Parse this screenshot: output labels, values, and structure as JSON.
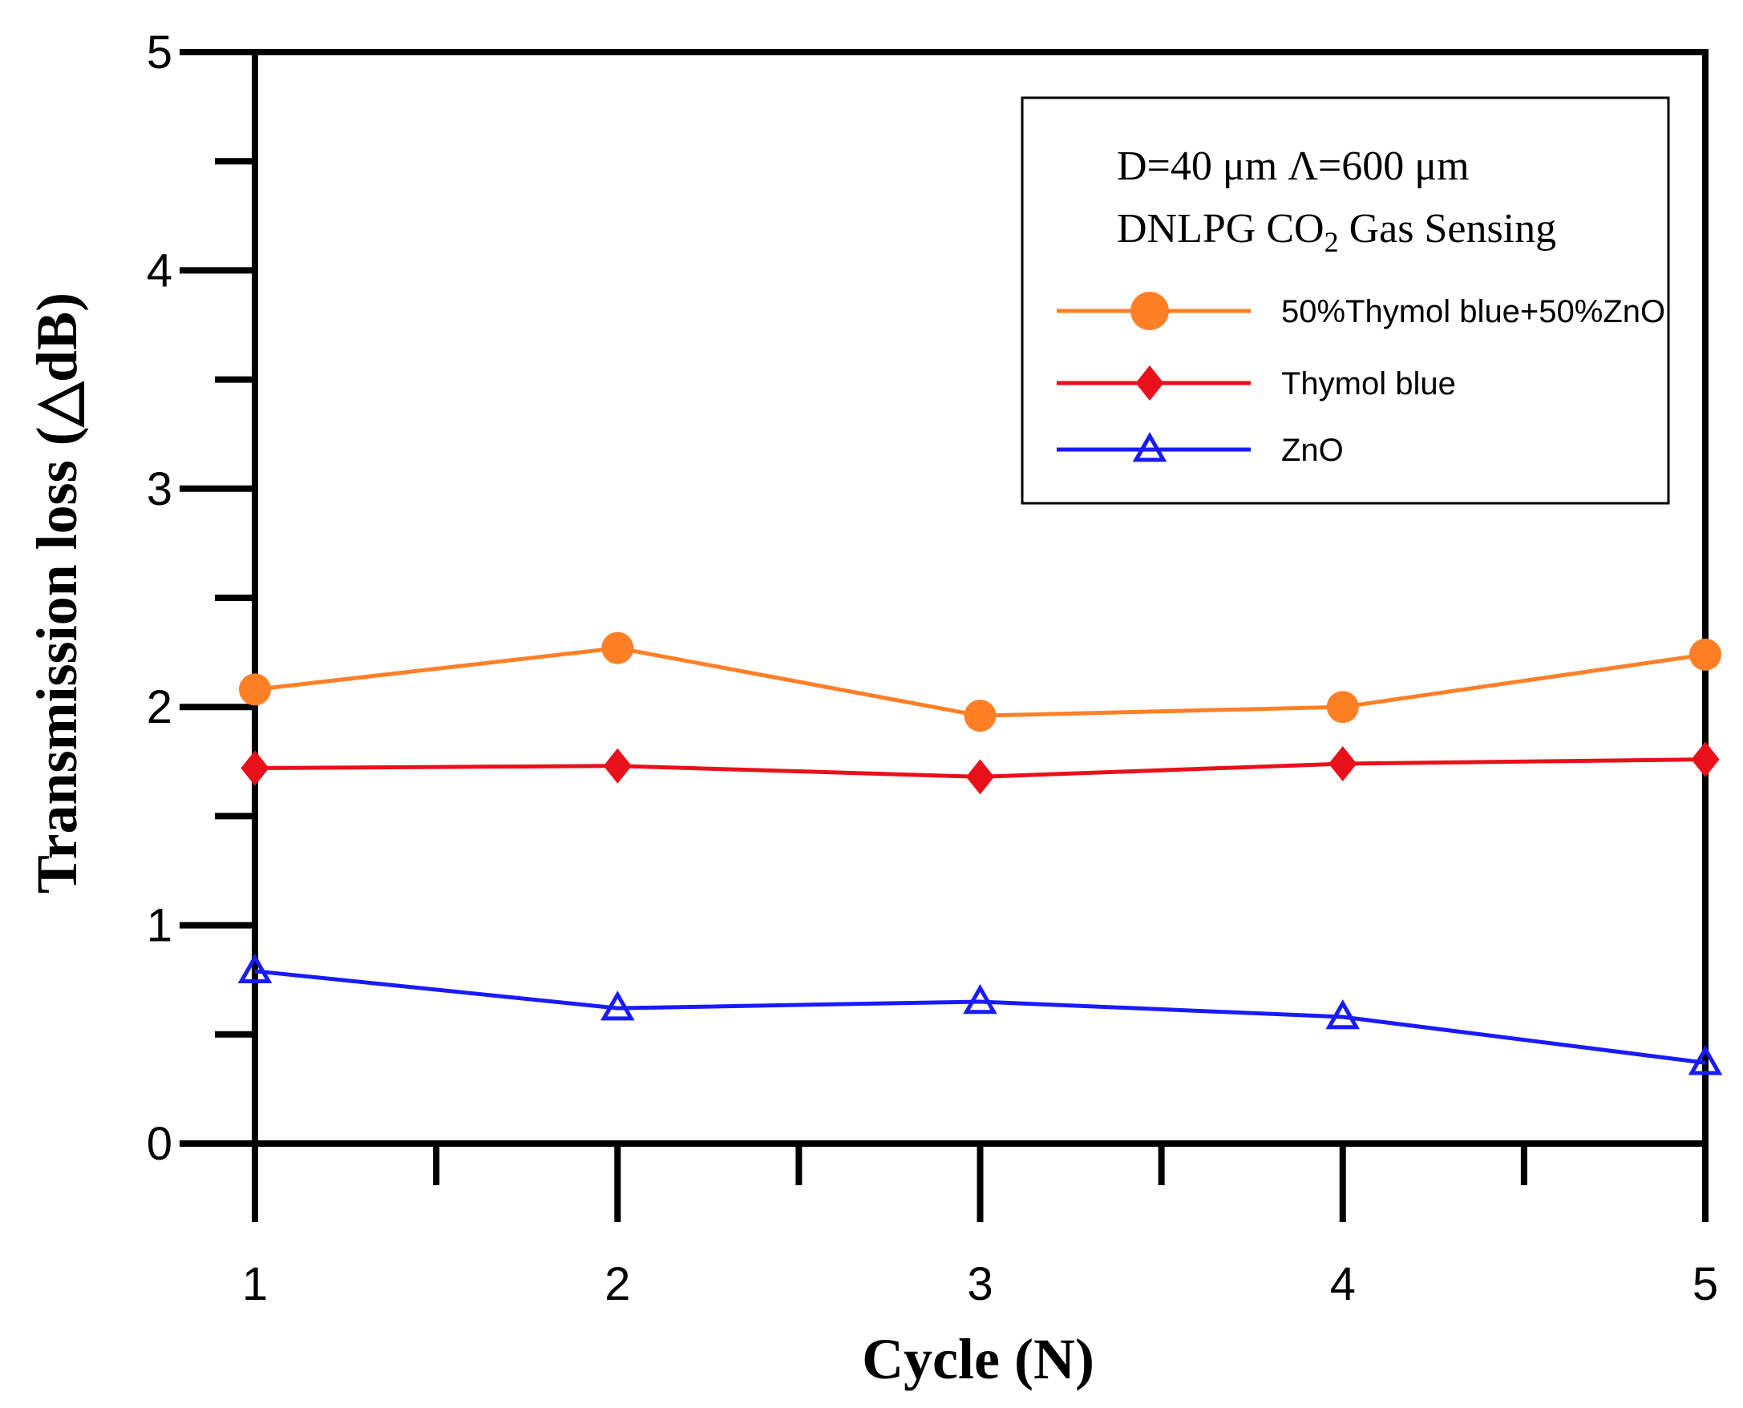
{
  "chart_data": {
    "type": "line",
    "xlabel": "Cycle (N)",
    "ylabel": "Transmission loss (△dB)",
    "x": [
      1,
      2,
      3,
      4,
      5
    ],
    "xlim": [
      1,
      5
    ],
    "ylim": [
      0,
      5
    ],
    "x_ticks": [
      "1",
      "2",
      "3",
      "4",
      "5"
    ],
    "y_ticks": [
      "0",
      "1",
      "2",
      "3",
      "4",
      "5"
    ],
    "grid": false,
    "legend": {
      "placement": "top-right",
      "header_line1": "D=40 μm  Λ=600 μm",
      "header_line2_main": "DNLPG CO",
      "header_line2_sub": "2",
      "header_line2_rest": " Gas Sensing"
    },
    "series": [
      {
        "name": "50%Thymol blue+50%ZnO",
        "color": "#ff7f27",
        "marker": "circle",
        "values": [
          2.08,
          2.27,
          1.96,
          2.0,
          2.24
        ]
      },
      {
        "name": "Thymol blue",
        "color": "#e8111b",
        "marker": "diamond",
        "values": [
          1.72,
          1.73,
          1.68,
          1.74,
          1.76
        ]
      },
      {
        "name": "ZnO",
        "color": "#1a1aff",
        "marker": "triangle",
        "values": [
          0.79,
          0.62,
          0.65,
          0.58,
          0.37
        ]
      }
    ]
  }
}
